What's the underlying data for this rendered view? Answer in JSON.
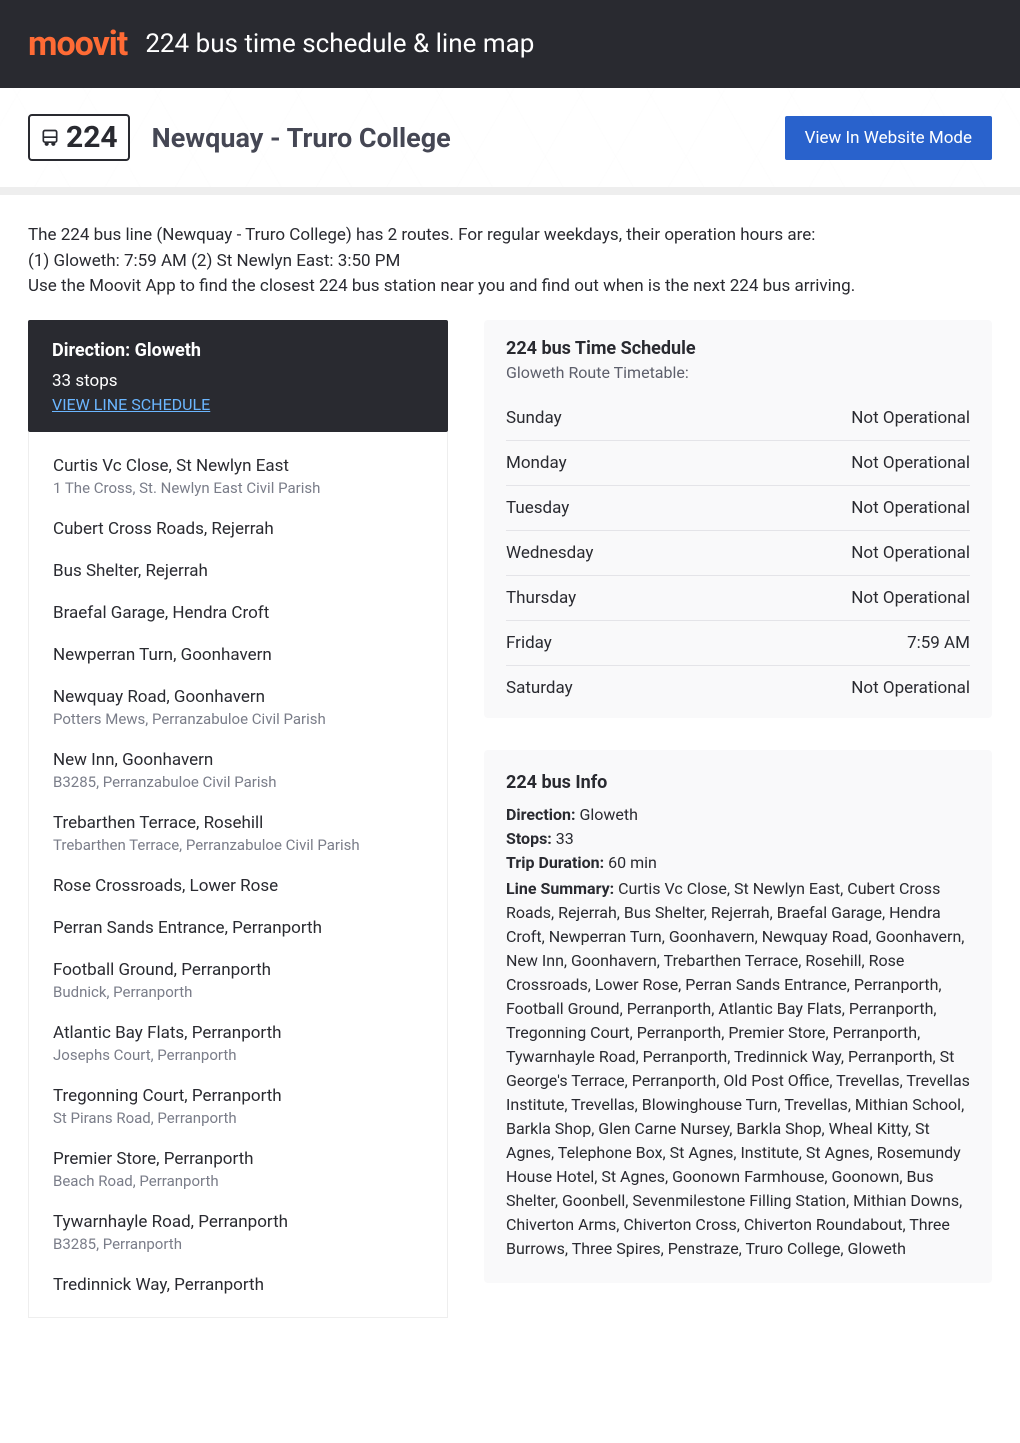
{
  "header": {
    "logo": "moovit",
    "title": "224 bus time schedule & line map"
  },
  "route": {
    "number": "224",
    "name": "Newquay - Truro College",
    "view_button": "View In Website Mode"
  },
  "intro": {
    "line1": "The 224 bus line (Newquay - Truro College) has 2 routes. For regular weekdays, their operation hours are:",
    "line2": "(1) Gloweth: 7:59 AM (2) St Newlyn East: 3:50 PM",
    "line3": "Use the Moovit App to find the closest 224 bus station near you and find out when is the next 224 bus arriving."
  },
  "direction": {
    "label": "Direction: Gloweth",
    "stops_count": "33 stops",
    "view_schedule": "VIEW LINE SCHEDULE"
  },
  "stops": [
    {
      "name": "Curtis Vc Close, St Newlyn East",
      "sub": "1 The Cross, St. Newlyn East Civil Parish"
    },
    {
      "name": "Cubert Cross Roads, Rejerrah",
      "sub": ""
    },
    {
      "name": "Bus Shelter, Rejerrah",
      "sub": ""
    },
    {
      "name": "Braefal Garage, Hendra Croft",
      "sub": ""
    },
    {
      "name": "Newperran Turn, Goonhavern",
      "sub": ""
    },
    {
      "name": "Newquay Road, Goonhavern",
      "sub": "Potters Mews, Perranzabuloe Civil Parish"
    },
    {
      "name": "New Inn, Goonhavern",
      "sub": "B3285, Perranzabuloe Civil Parish"
    },
    {
      "name": "Trebarthen Terrace, Rosehill",
      "sub": "Trebarthen Terrace, Perranzabuloe Civil Parish"
    },
    {
      "name": "Rose Crossroads, Lower Rose",
      "sub": ""
    },
    {
      "name": "Perran Sands Entrance, Perranporth",
      "sub": ""
    },
    {
      "name": "Football Ground, Perranporth",
      "sub": "Budnick, Perranporth"
    },
    {
      "name": "Atlantic Bay Flats, Perranporth",
      "sub": "Josephs Court, Perranporth"
    },
    {
      "name": "Tregonning Court, Perranporth",
      "sub": "St Pirans Road, Perranporth"
    },
    {
      "name": "Premier Store, Perranporth",
      "sub": "Beach Road, Perranporth"
    },
    {
      "name": "Tywarnhayle Road, Perranporth",
      "sub": "B3285, Perranporth"
    },
    {
      "name": "Tredinnick Way, Perranporth",
      "sub": ""
    }
  ],
  "schedule": {
    "title": "224 bus Time Schedule",
    "subtitle": "Gloweth Route Timetable:",
    "rows": [
      {
        "day": "Sunday",
        "time": "Not Operational"
      },
      {
        "day": "Monday",
        "time": "Not Operational"
      },
      {
        "day": "Tuesday",
        "time": "Not Operational"
      },
      {
        "day": "Wednesday",
        "time": "Not Operational"
      },
      {
        "day": "Thursday",
        "time": "Not Operational"
      },
      {
        "day": "Friday",
        "time": "7:59 AM"
      },
      {
        "day": "Saturday",
        "time": "Not Operational"
      }
    ]
  },
  "info": {
    "title": "224 bus Info",
    "direction_label": "Direction:",
    "direction_value": "Gloweth",
    "stops_label": "Stops:",
    "stops_value": "33",
    "duration_label": "Trip Duration:",
    "duration_value": "60 min",
    "summary_label": "Line Summary:",
    "summary_value": "Curtis Vc Close, St Newlyn East, Cubert Cross Roads, Rejerrah, Bus Shelter, Rejerrah, Braefal Garage, Hendra Croft, Newperran Turn, Goonhavern, Newquay Road, Goonhavern, New Inn, Goonhavern, Trebarthen Terrace, Rosehill, Rose Crossroads, Lower Rose, Perran Sands Entrance, Perranporth, Football Ground, Perranporth, Atlantic Bay Flats, Perranporth, Tregonning Court, Perranporth, Premier Store, Perranporth, Tywarnhayle Road, Perranporth, Tredinnick Way, Perranporth, St George's Terrace, Perranporth, Old Post Office, Trevellas, Trevellas Institute, Trevellas, Blowinghouse Turn, Trevellas, Mithian School, Barkla Shop, Glen Carne Nursey, Barkla Shop, Wheal Kitty, St Agnes, Telephone Box, St Agnes, Institute, St Agnes, Rosemundy House Hotel, St Agnes, Goonown Farmhouse, Goonown, Bus Shelter, Goonbell, Sevenmilestone Filling Station, Mithian Downs, Chiverton Arms, Chiverton Cross, Chiverton Roundabout, Three Burrows, Three Spires, Penstraze, Truro College, Gloweth"
  }
}
